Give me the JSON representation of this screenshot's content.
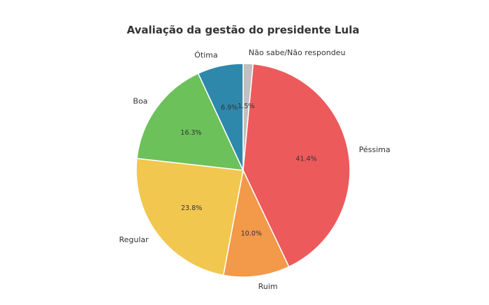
{
  "chart_data": {
    "type": "pie",
    "title": "Avaliação da gestão do presidente Lula",
    "slices": [
      {
        "label": "Não sabe/Não respondeu",
        "value": 1.5,
        "display": "1.5%",
        "color": "#c0c0c0"
      },
      {
        "label": "Péssima",
        "value": 41.4,
        "display": "41.4%",
        "color": "#ec5a5b"
      },
      {
        "label": "Ruim",
        "value": 10.0,
        "display": "10.0%",
        "color": "#f2994a"
      },
      {
        "label": "Regular",
        "value": 23.8,
        "display": "23.8%",
        "color": "#f2c74f"
      },
      {
        "label": "Boa",
        "value": 16.3,
        "display": "16.3%",
        "color": "#6cc15a"
      },
      {
        "label": "Ótima",
        "value": 6.9,
        "display": "6.9%",
        "color": "#2e88ab"
      }
    ],
    "start_angle": "top",
    "direction": "clockwise",
    "legend": "none"
  }
}
